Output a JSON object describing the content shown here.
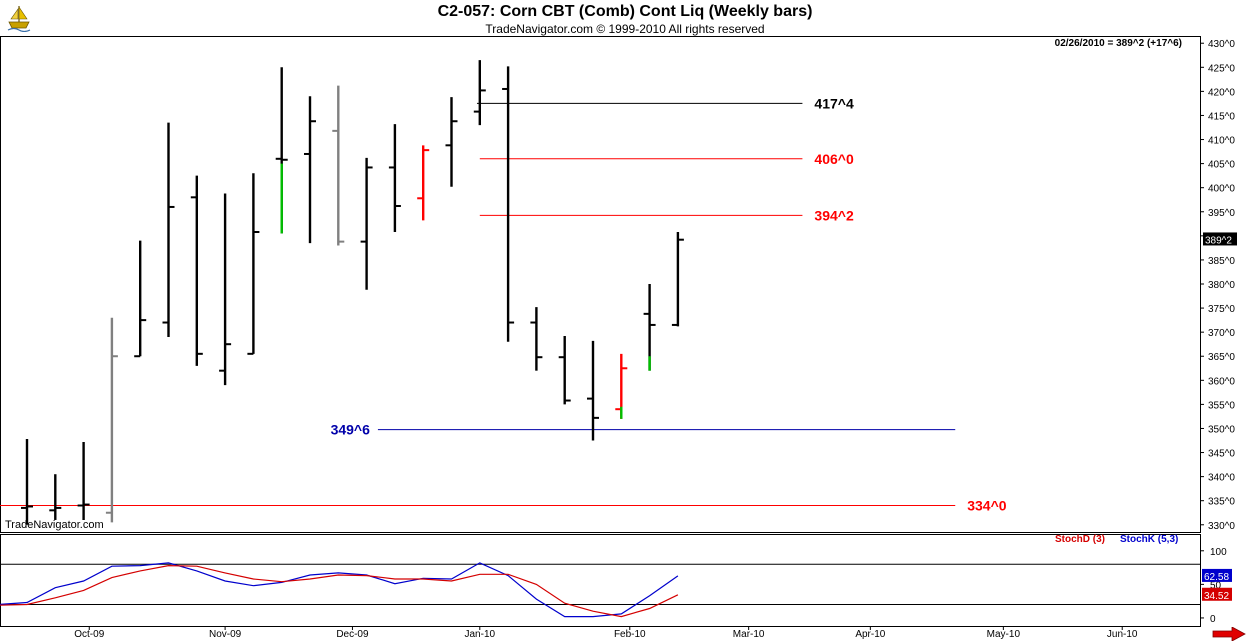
{
  "header": {
    "title": "C2-057:  Corn CBT (Comb) Cont Liq  (Weekly bars)",
    "subtitle": "TradeNavigator.com © 1999-2010 All rights reserved",
    "logo_icon": "sailing-ship-icon"
  },
  "watermark": "TradeNavigator.com",
  "nav_icon": "red-right-arrow-icon",
  "chart_data": [
    {
      "type": "ohlc",
      "title": "C2-057:  Corn CBT (Comb) Cont Liq  (Weekly bars)",
      "readout": "02/26/2010 = 389^2 (+17^6)",
      "last_price_label": "389^2",
      "last_price": 389.25,
      "ylim": [
        328.5,
        431.5
      ],
      "y_ticks": [
        {
          "value": 430,
          "label": "430^0"
        },
        {
          "value": 425,
          "label": "425^0"
        },
        {
          "value": 420,
          "label": "420^0"
        },
        {
          "value": 415,
          "label": "415^0"
        },
        {
          "value": 410,
          "label": "410^0"
        },
        {
          "value": 405,
          "label": "405^0"
        },
        {
          "value": 400,
          "label": "400^0"
        },
        {
          "value": 395,
          "label": "395^0"
        },
        {
          "value": 390,
          "label": "390^0"
        },
        {
          "value": 385,
          "label": "385^0"
        },
        {
          "value": 380,
          "label": "380^0"
        },
        {
          "value": 375,
          "label": "375^0"
        },
        {
          "value": 370,
          "label": "370^0"
        },
        {
          "value": 365,
          "label": "365^0"
        },
        {
          "value": 360,
          "label": "360^0"
        },
        {
          "value": 355,
          "label": "355^0"
        },
        {
          "value": 350,
          "label": "350^0"
        },
        {
          "value": 345,
          "label": "345^0"
        },
        {
          "value": 340,
          "label": "340^0"
        },
        {
          "value": 335,
          "label": "335^0"
        },
        {
          "value": 330,
          "label": "330^0"
        }
      ],
      "x_ticks": [
        "Oct-09",
        "Nov-09",
        "Dec-09",
        "Jan-10",
        "Feb-10",
        "Mar-10",
        "Apr-10",
        "May-10",
        "Jun-10"
      ],
      "x_tick_weeks": [
        2.2,
        7,
        11.5,
        16,
        21.3,
        25.5,
        29.8,
        34.5,
        38.7
      ],
      "week_range": [
        -1,
        41.9
      ],
      "bars": [
        {
          "week": 0,
          "high": 347.8,
          "low": 330.0,
          "open": 333.5,
          "close": 333.8,
          "color": "#000000"
        },
        {
          "week": 1,
          "high": 340.5,
          "low": 331.0,
          "open": 333.0,
          "close": 333.5,
          "color": "#000000"
        },
        {
          "week": 2,
          "high": 347.2,
          "low": 331.0,
          "open": 334.0,
          "close": 334.2,
          "color": "#000000"
        },
        {
          "week": 3,
          "high": 373.0,
          "low": 330.5,
          "open": 332.5,
          "close": 365.0,
          "color": "#808080"
        },
        {
          "week": 4,
          "high": 389.0,
          "low": 365.0,
          "open": 365.0,
          "close": 372.5,
          "color": "#000000"
        },
        {
          "week": 5,
          "high": 413.5,
          "low": 369.0,
          "open": 372.0,
          "close": 396.0,
          "color": "#000000"
        },
        {
          "week": 6,
          "high": 402.5,
          "low": 363.0,
          "open": 398.0,
          "close": 365.5,
          "color": "#000000"
        },
        {
          "week": 7,
          "high": 398.8,
          "low": 359.0,
          "open": 362.0,
          "close": 367.5,
          "color": "#000000"
        },
        {
          "week": 8,
          "high": 403.0,
          "low": 365.5,
          "open": 365.5,
          "close": 390.8,
          "color": "#000000"
        },
        {
          "week": 9,
          "high": 425.0,
          "low": 390.5,
          "open": 406.0,
          "close": 405.8,
          "color": "#000000"
        },
        {
          "week": 10,
          "high": 419.0,
          "low": 388.5,
          "open": 407.0,
          "close": 413.8,
          "color": "#000000"
        },
        {
          "week": 11,
          "high": 421.2,
          "low": 388.0,
          "open": 411.8,
          "close": 388.8,
          "color": "#808080"
        },
        {
          "week": 12,
          "high": 406.2,
          "low": 378.8,
          "open": 388.8,
          "close": 404.2,
          "color": "#000000"
        },
        {
          "week": 13,
          "high": 413.2,
          "low": 390.8,
          "open": 404.2,
          "close": 396.2,
          "color": "#000000"
        },
        {
          "week": 14,
          "high": 408.8,
          "low": 393.2,
          "open": 397.8,
          "close": 407.8,
          "color": "#ff0000"
        },
        {
          "week": 15,
          "high": 418.8,
          "low": 400.2,
          "open": 408.8,
          "close": 413.8,
          "color": "#000000"
        },
        {
          "week": 16,
          "high": 426.5,
          "low": 413.0,
          "open": 415.8,
          "close": 420.2,
          "color": "#000000"
        },
        {
          "week": 17,
          "high": 425.2,
          "low": 368.0,
          "open": 420.5,
          "close": 372.0,
          "color": "#000000"
        },
        {
          "week": 18,
          "high": 375.2,
          "low": 362.0,
          "open": 372.0,
          "close": 364.8,
          "color": "#000000"
        },
        {
          "week": 19,
          "high": 369.2,
          "low": 355.0,
          "open": 364.8,
          "close": 355.8,
          "color": "#000000"
        },
        {
          "week": 20,
          "high": 368.2,
          "low": 347.5,
          "open": 356.2,
          "close": 352.2,
          "color": "#000000"
        },
        {
          "week": 21,
          "high": 365.5,
          "low": 352.0,
          "open": 354.0,
          "close": 362.5,
          "color": "#ff0000"
        },
        {
          "week": 22,
          "high": 380.0,
          "low": 362.0,
          "open": 373.8,
          "close": 371.5,
          "color": "#000000"
        },
        {
          "week": 23,
          "high": 390.8,
          "low": 371.2,
          "open": 371.5,
          "close": 389.2,
          "color": "#000000"
        }
      ],
      "green_segments": [
        {
          "week": 9,
          "from": 390.5,
          "to": 405.0
        },
        {
          "week": 21,
          "from": 352.0,
          "to": 354.5
        },
        {
          "week": 22,
          "from": 362.0,
          "to": 365.0
        }
      ],
      "levels": [
        {
          "value": 417.5,
          "label": "417^4",
          "color": "#000000",
          "from_week": 15.9,
          "to_week": 27.4,
          "label_side": "right"
        },
        {
          "value": 406.0,
          "label": "406^0",
          "color": "#ff0000",
          "from_week": 16.0,
          "to_week": 27.4,
          "label_side": "right"
        },
        {
          "value": 394.25,
          "label": "394^2",
          "color": "#ff0000",
          "from_week": 16.0,
          "to_week": 27.4,
          "label_side": "right"
        },
        {
          "value": 349.75,
          "label": "349^6",
          "color": "#0000aa",
          "from_week": 12.4,
          "to_week": 32.8,
          "label_side": "left"
        },
        {
          "value": 334.0,
          "label": "334^0",
          "color": "#ff0000",
          "from_week": -1.0,
          "to_week": 32.8,
          "label_side": "right"
        }
      ]
    },
    {
      "type": "line",
      "legend": [
        {
          "name": "StochD (3)",
          "color": "#d40000"
        },
        {
          "name": "StochK (5,3)",
          "color": "#0000cc"
        }
      ],
      "ylim": [
        -12,
        125
      ],
      "y_ticks": [
        0,
        50,
        100
      ],
      "ref_lines": [
        80,
        20
      ],
      "value_labels": [
        {
          "label": "62.58",
          "value": 62.58,
          "color": "#0000cc"
        },
        {
          "label": "34.52",
          "value": 34.52,
          "color": "#d40000"
        }
      ],
      "series": [
        {
          "name": "StochK (5,3)",
          "color": "#0000cc",
          "x": [
            -1,
            0,
            1,
            2,
            3,
            4,
            5,
            6,
            7,
            8,
            9,
            10,
            11,
            12,
            13,
            14,
            15,
            16,
            17,
            18,
            19,
            20,
            21,
            22,
            23
          ],
          "values": [
            20,
            23,
            45,
            55,
            77,
            78,
            82,
            70,
            55,
            48,
            53,
            64,
            67,
            64,
            51,
            59,
            58,
            82,
            63,
            28,
            2,
            2,
            6,
            33,
            62.58
          ]
        },
        {
          "name": "StochD (3)",
          "color": "#d40000",
          "x": [
            -1,
            0,
            1,
            2,
            3,
            4,
            5,
            6,
            7,
            8,
            9,
            10,
            11,
            12,
            13,
            14,
            15,
            16,
            17,
            18,
            19,
            20,
            21,
            22,
            23
          ],
          "values": [
            19,
            20,
            30,
            41,
            60,
            70,
            78,
            77,
            67,
            58,
            54,
            58,
            64,
            63,
            58,
            58,
            55,
            65,
            65,
            50,
            22,
            10,
            2,
            14,
            34.52
          ]
        }
      ]
    }
  ]
}
